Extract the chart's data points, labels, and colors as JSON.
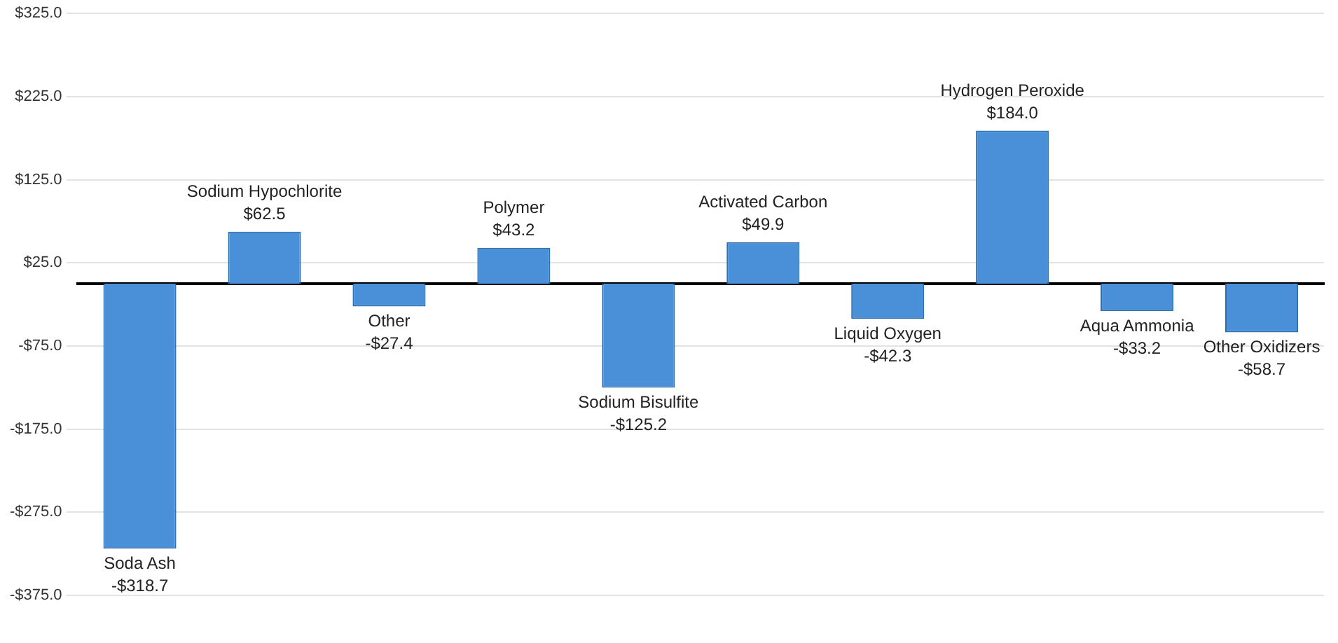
{
  "chart_data": {
    "type": "bar",
    "categories": [
      "Soda Ash",
      "Sodium Hypochlorite",
      "Other",
      "Polymer",
      "Sodium Bisulfite",
      "Activated Carbon",
      "Liquid Oxygen",
      "Hydrogen Peroxide",
      "Aqua Ammonia",
      "Other Oxidizers"
    ],
    "values": [
      -318.7,
      62.5,
      -27.4,
      43.2,
      -125.2,
      49.9,
      -42.3,
      184.0,
      -33.2,
      -58.7
    ],
    "value_labels": [
      "-$318.7",
      "$62.5",
      "-$27.4",
      "$43.2",
      "-$125.2",
      "$49.9",
      "-$42.3",
      "$184.0",
      "-$33.2",
      "-$58.7"
    ],
    "color": "#4a90d9",
    "ylim": [
      -375,
      325
    ],
    "yticks": [
      {
        "value": -375,
        "label": "-$375.0"
      },
      {
        "value": -275,
        "label": "-$275.0"
      },
      {
        "value": -175,
        "label": "-$175.0"
      },
      {
        "value": -75,
        "label": "-$75.0"
      },
      {
        "value": 25,
        "label": "$25.0"
      },
      {
        "value": 125,
        "label": "$125.0"
      },
      {
        "value": 225,
        "label": "$225.0"
      },
      {
        "value": 325,
        "label": "$325.0"
      }
    ],
    "grid": "y",
    "tick_labels": "y",
    "legend": false
  }
}
